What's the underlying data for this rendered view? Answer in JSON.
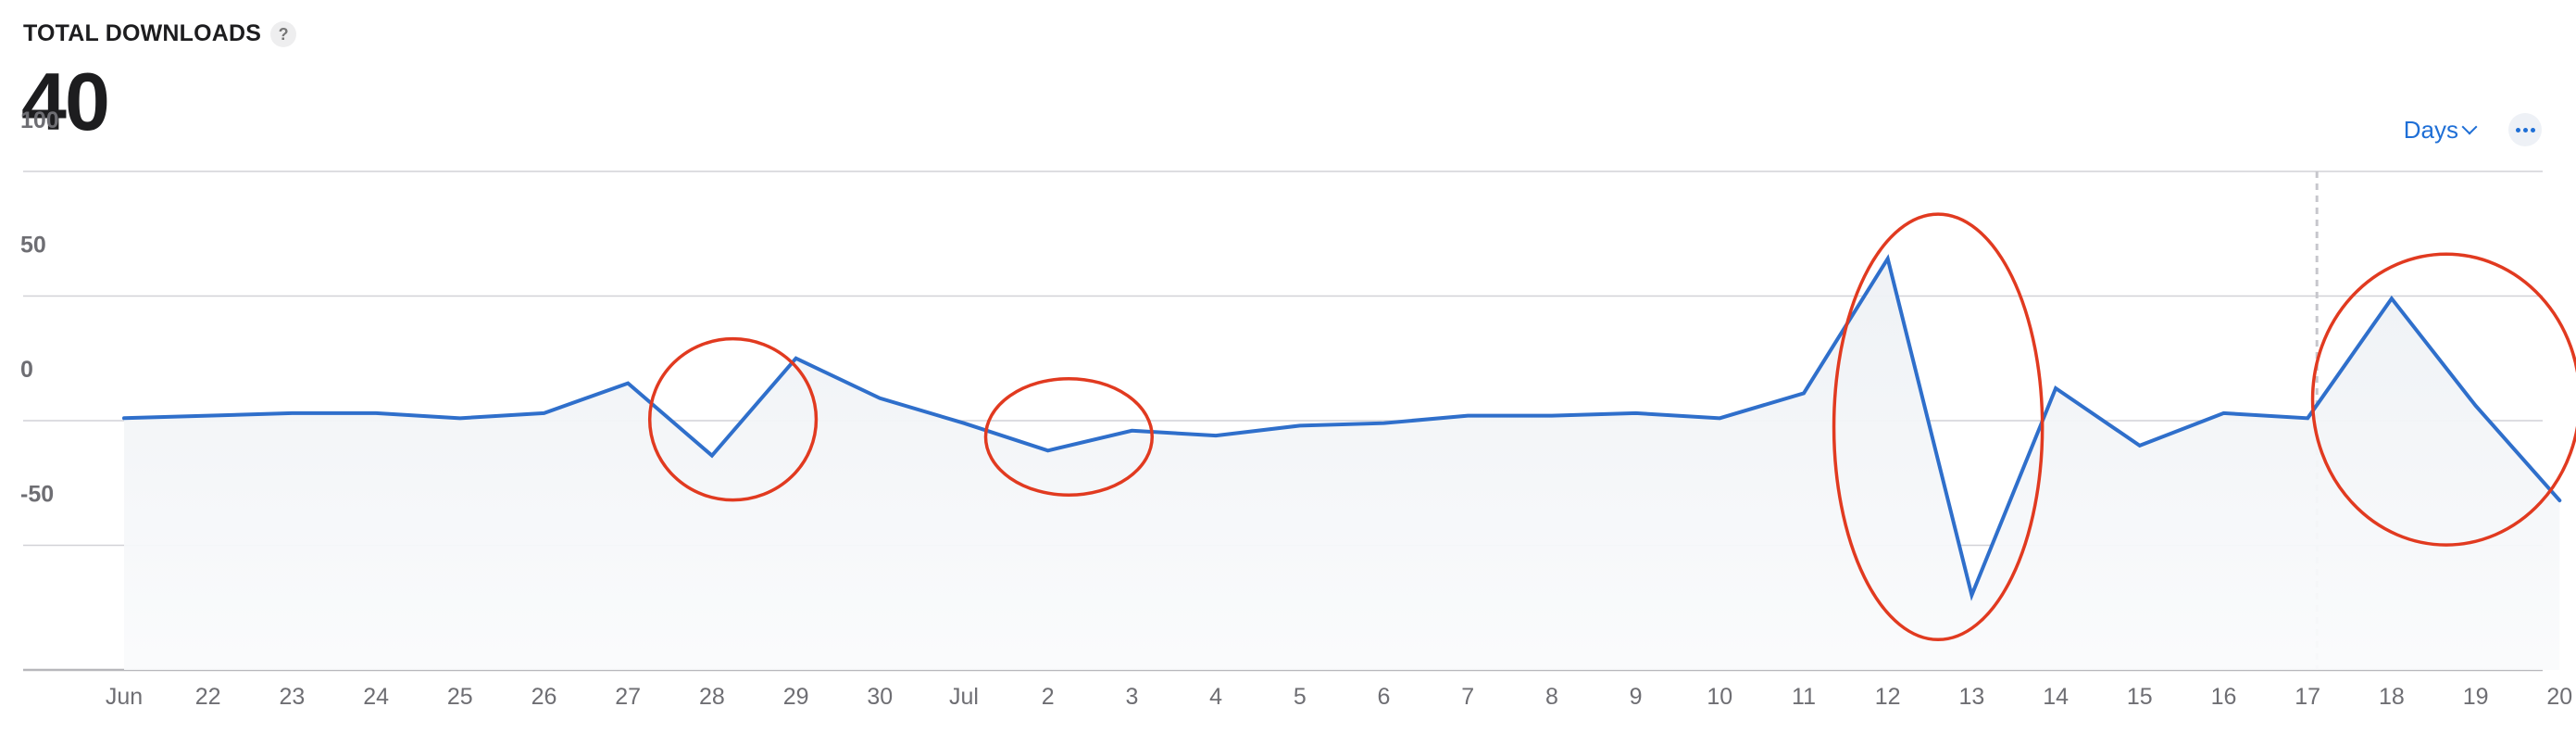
{
  "header": {
    "title": "TOTAL DOWNLOADS",
    "help_icon": "question-mark-icon",
    "help_label": "?",
    "total": "40",
    "period_button": "Days",
    "period_icon": "chevron-down-icon",
    "more_icon": "more-dots-icon"
  },
  "chart_data": {
    "type": "line",
    "x": [
      "Jun",
      "22",
      "23",
      "24",
      "25",
      "26",
      "27",
      "28",
      "29",
      "30",
      "Jul",
      "2",
      "3",
      "4",
      "5",
      "6",
      "7",
      "8",
      "9",
      "10",
      "11",
      "12",
      "13",
      "14",
      "15",
      "16",
      "17",
      "18",
      "19",
      "20"
    ],
    "values": [
      1,
      2,
      3,
      3,
      1,
      3,
      15,
      -14,
      25,
      9,
      -1,
      -12,
      -4,
      -6,
      -2,
      -1,
      2,
      2,
      3,
      1,
      11,
      65,
      -70,
      13,
      -10,
      3,
      1,
      49,
      6,
      -32
    ],
    "ylim": [
      -100,
      100
    ],
    "yticks": [
      100,
      50,
      0,
      -50
    ],
    "grid": true,
    "line_color": "#2f6fcb",
    "fill_color": "#eef1f5",
    "annotation_color": "#e13a20",
    "marker_after": "17"
  }
}
